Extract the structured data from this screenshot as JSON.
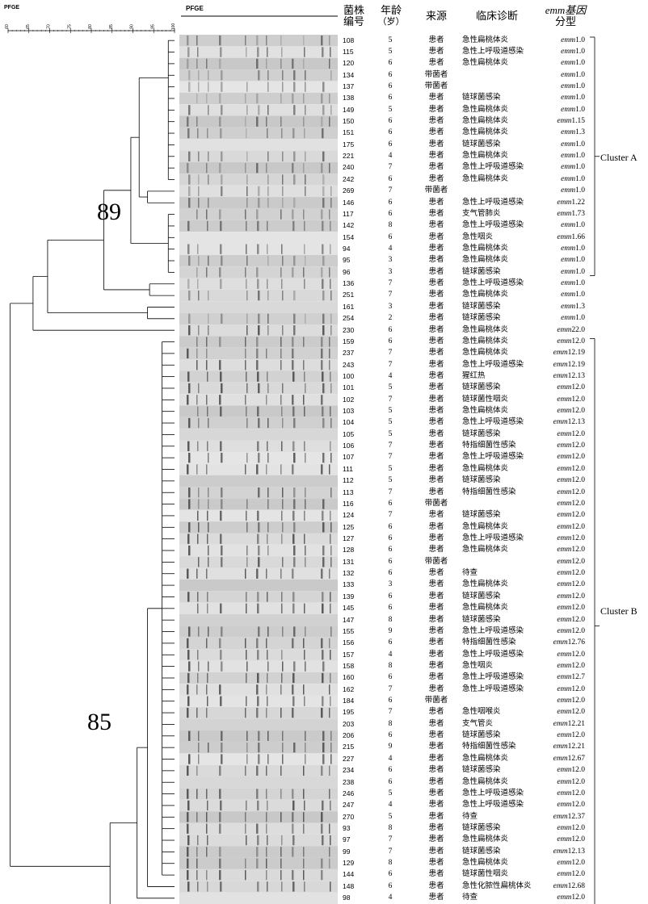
{
  "labels": {
    "dendro_title": "PFGE",
    "gel_title": "PFGE",
    "scale_ticks": [
      "60",
      "65",
      "70",
      "75",
      "80",
      "85",
      "90",
      "95",
      "100"
    ],
    "node_89": "89",
    "node_85": "85",
    "cluster_a": "Cluster A",
    "cluster_b": "Cluster B"
  },
  "headers": {
    "id": [
      "菌株",
      "编号"
    ],
    "age": [
      "年龄",
      "（岁）"
    ],
    "source": [
      "来源"
    ],
    "diagnosis": [
      "临床诊断"
    ],
    "emm": [
      "emm基因",
      "分型"
    ]
  },
  "rows": [
    {
      "id": "108",
      "age": "5",
      "source": "患者",
      "diag": "急性扁桃体炎",
      "emm": "1.0"
    },
    {
      "id": "115",
      "age": "5",
      "source": "患者",
      "diag": "急性上呼吸道感染",
      "emm": "1.0"
    },
    {
      "id": "120",
      "age": "6",
      "source": "患者",
      "diag": "急性扁桃体炎",
      "emm": "1.0"
    },
    {
      "id": "134",
      "age": "6",
      "source": "带菌者",
      "diag": "",
      "emm": "1.0"
    },
    {
      "id": "137",
      "age": "6",
      "source": "带菌者",
      "diag": "",
      "emm": "1.0"
    },
    {
      "id": "138",
      "age": "6",
      "source": "患者",
      "diag": "链球菌感染",
      "emm": "1.0"
    },
    {
      "id": "149",
      "age": "5",
      "source": "患者",
      "diag": "急性扁桃体炎",
      "emm": "1.0"
    },
    {
      "id": "150",
      "age": "6",
      "source": "患者",
      "diag": "急性扁桃体炎",
      "emm": "1.15"
    },
    {
      "id": "151",
      "age": "6",
      "source": "患者",
      "diag": "急性扁桃体炎",
      "emm": "1.3"
    },
    {
      "id": "175",
      "age": "6",
      "source": "患者",
      "diag": "链球菌感染",
      "emm": "1.0"
    },
    {
      "id": "221",
      "age": "4",
      "source": "患者",
      "diag": "急性扁桃体炎",
      "emm": "1.0"
    },
    {
      "id": "240",
      "age": "7",
      "source": "患者",
      "diag": "急性上呼吸道感染",
      "emm": "1.0"
    },
    {
      "id": "242",
      "age": "6",
      "source": "患者",
      "diag": "急性扁桃体炎",
      "emm": "1.0"
    },
    {
      "id": "269",
      "age": "7",
      "source": "带菌者",
      "diag": "",
      "emm": "1.0"
    },
    {
      "id": "146",
      "age": "6",
      "source": "患者",
      "diag": "急性上呼吸道感染",
      "emm": "1.22"
    },
    {
      "id": "117",
      "age": "6",
      "source": "患者",
      "diag": "支气管肺炎",
      "emm": "1.73"
    },
    {
      "id": "142",
      "age": "8",
      "source": "患者",
      "diag": "急性上呼吸道感染",
      "emm": "1.0"
    },
    {
      "id": "154",
      "age": "6",
      "source": "患者",
      "diag": "急性咽炎",
      "emm": "1.66"
    },
    {
      "id": "94",
      "age": "4",
      "source": "患者",
      "diag": "急性扁桃体炎",
      "emm": "1.0"
    },
    {
      "id": "95",
      "age": "3",
      "source": "患者",
      "diag": "急性扁桃体炎",
      "emm": "1.0"
    },
    {
      "id": "96",
      "age": "3",
      "source": "患者",
      "diag": "链球菌感染",
      "emm": "1.0"
    },
    {
      "id": "136",
      "age": "7",
      "source": "患者",
      "diag": "急性上呼吸道感染",
      "emm": "1.0"
    },
    {
      "id": "251",
      "age": "7",
      "source": "患者",
      "diag": "急性扁桃体炎",
      "emm": "1.0"
    },
    {
      "id": "161",
      "age": "3",
      "source": "患者",
      "diag": "链球菌感染",
      "emm": "1.3"
    },
    {
      "id": "254",
      "age": "2",
      "source": "患者",
      "diag": "链球菌感染",
      "emm": "1.0"
    },
    {
      "id": "230",
      "age": "6",
      "source": "患者",
      "diag": "急性扁桃体炎",
      "emm": "22.0"
    },
    {
      "id": "159",
      "age": "6",
      "source": "患者",
      "diag": "急性扁桃体炎",
      "emm": "12.0"
    },
    {
      "id": "237",
      "age": "7",
      "source": "患者",
      "diag": "急性扁桃体炎",
      "emm": "12.19"
    },
    {
      "id": "243",
      "age": "7",
      "source": "患者",
      "diag": "急性上呼吸道感染",
      "emm": "12.19"
    },
    {
      "id": "100",
      "age": "4",
      "source": "患者",
      "diag": "猩红热",
      "emm": "12.13"
    },
    {
      "id": "101",
      "age": "5",
      "source": "患者",
      "diag": "链球菌感染",
      "emm": "12.0"
    },
    {
      "id": "102",
      "age": "7",
      "source": "患者",
      "diag": "链球菌性咽炎",
      "emm": "12.0"
    },
    {
      "id": "103",
      "age": "5",
      "source": "患者",
      "diag": "急性扁桃体炎",
      "emm": "12.0"
    },
    {
      "id": "104",
      "age": "5",
      "source": "患者",
      "diag": "急性上呼吸道感染",
      "emm": "12.13"
    },
    {
      "id": "105",
      "age": "5",
      "source": "患者",
      "diag": "链球菌感染",
      "emm": "12.0"
    },
    {
      "id": "106",
      "age": "7",
      "source": "患者",
      "diag": "特指细菌性感染",
      "emm": "12.0"
    },
    {
      "id": "107",
      "age": "7",
      "source": "患者",
      "diag": "急性上呼吸道感染",
      "emm": "12.0"
    },
    {
      "id": "111",
      "age": "5",
      "source": "患者",
      "diag": "急性扁桃体炎",
      "emm": "12.0"
    },
    {
      "id": "112",
      "age": "5",
      "source": "患者",
      "diag": "链球菌感染",
      "emm": "12.0"
    },
    {
      "id": "113",
      "age": "7",
      "source": "患者",
      "diag": "特指细菌性感染",
      "emm": "12.0"
    },
    {
      "id": "116",
      "age": "6",
      "source": "带菌者",
      "diag": "",
      "emm": "12.0"
    },
    {
      "id": "124",
      "age": "7",
      "source": "患者",
      "diag": "链球菌感染",
      "emm": "12.0"
    },
    {
      "id": "125",
      "age": "6",
      "source": "患者",
      "diag": "急性扁桃体炎",
      "emm": "12.0"
    },
    {
      "id": "127",
      "age": "6",
      "source": "患者",
      "diag": "急性上呼吸道感染",
      "emm": "12.0"
    },
    {
      "id": "128",
      "age": "6",
      "source": "患者",
      "diag": "急性扁桃体炎",
      "emm": "12.0"
    },
    {
      "id": "131",
      "age": "6",
      "source": "带菌者",
      "diag": "",
      "emm": "12.0"
    },
    {
      "id": "132",
      "age": "6",
      "source": "患者",
      "diag": "待查",
      "emm": "12.0"
    },
    {
      "id": "133",
      "age": "3",
      "source": "患者",
      "diag": "急性扁桃体炎",
      "emm": "12.0"
    },
    {
      "id": "139",
      "age": "6",
      "source": "患者",
      "diag": "链球菌感染",
      "emm": "12.0"
    },
    {
      "id": "145",
      "age": "6",
      "source": "患者",
      "diag": "急性扁桃体炎",
      "emm": "12.0"
    },
    {
      "id": "147",
      "age": "8",
      "source": "患者",
      "diag": "链球菌感染",
      "emm": "12.0"
    },
    {
      "id": "155",
      "age": "9",
      "source": "患者",
      "diag": "急性上呼吸道感染",
      "emm": "12.0"
    },
    {
      "id": "156",
      "age": "6",
      "source": "患者",
      "diag": "特指细菌性感染",
      "emm": "12.76"
    },
    {
      "id": "157",
      "age": "4",
      "source": "患者",
      "diag": "急性上呼吸道感染",
      "emm": "12.0"
    },
    {
      "id": "158",
      "age": "8",
      "source": "患者",
      "diag": "急性咽炎",
      "emm": "12.0"
    },
    {
      "id": "160",
      "age": "6",
      "source": "患者",
      "diag": "急性上呼吸道感染",
      "emm": "12.7"
    },
    {
      "id": "162",
      "age": "7",
      "source": "患者",
      "diag": "急性上呼吸道感染",
      "emm": "12.0"
    },
    {
      "id": "184",
      "age": "6",
      "source": "带菌者",
      "diag": "",
      "emm": "12.0"
    },
    {
      "id": "195",
      "age": "7",
      "source": "患者",
      "diag": "急性咽喉炎",
      "emm": "12.0"
    },
    {
      "id": "203",
      "age": "8",
      "source": "患者",
      "diag": "支气管炎",
      "emm": "12.21"
    },
    {
      "id": "206",
      "age": "6",
      "source": "患者",
      "diag": "链球菌感染",
      "emm": "12.0"
    },
    {
      "id": "215",
      "age": "9",
      "source": "患者",
      "diag": "特指细菌性感染",
      "emm": "12.21"
    },
    {
      "id": "227",
      "age": "4",
      "source": "患者",
      "diag": "急性扁桃体炎",
      "emm": "12.67"
    },
    {
      "id": "234",
      "age": "6",
      "source": "患者",
      "diag": "链球菌感染",
      "emm": "12.0"
    },
    {
      "id": "238",
      "age": "6",
      "source": "患者",
      "diag": "急性扁桃体炎",
      "emm": "12.0"
    },
    {
      "id": "246",
      "age": "5",
      "source": "患者",
      "diag": "急性上呼吸道感染",
      "emm": "12.0"
    },
    {
      "id": "247",
      "age": "4",
      "source": "患者",
      "diag": "急性上呼吸道感染",
      "emm": "12.0"
    },
    {
      "id": "270",
      "age": "5",
      "source": "患者",
      "diag": "待查",
      "emm": "12.37"
    },
    {
      "id": "93",
      "age": "8",
      "source": "患者",
      "diag": "链球菌感染",
      "emm": "12.0"
    },
    {
      "id": "97",
      "age": "7",
      "source": "患者",
      "diag": "急性扁桃体炎",
      "emm": "12.0"
    },
    {
      "id": "99",
      "age": "7",
      "source": "患者",
      "diag": "链球菌感染",
      "emm": "12.13"
    },
    {
      "id": "129",
      "age": "8",
      "source": "患者",
      "diag": "急性扁桃体炎",
      "emm": "12.0"
    },
    {
      "id": "144",
      "age": "6",
      "source": "患者",
      "diag": "链球菌性咽炎",
      "emm": "12.0"
    },
    {
      "id": "148",
      "age": "6",
      "source": "患者",
      "diag": "急性化脓性扁桃体炎",
      "emm": "12.68"
    },
    {
      "id": "98",
      "age": "4",
      "source": "患者",
      "diag": "待查",
      "emm": "12.0"
    }
  ]
}
